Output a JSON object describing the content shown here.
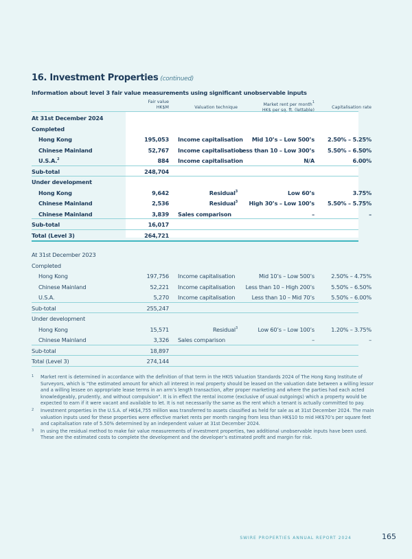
{
  "section": {
    "title": "16. Investment Properties",
    "title_suffix": "(continued)",
    "subtitle": "Information about level 3 fair value measurements using significant unobservable inputs"
  },
  "headers": {
    "fair_value_1": "Fair value",
    "fair_value_2": "HK$M",
    "technique": "Valuation technique",
    "rent_1": "Market rent per month",
    "rent_1_sup": "1",
    "rent_2": "HK$ per sq. ft. (lettable)",
    "cap": "Capitalisation rate"
  },
  "rows_2024": [
    {
      "label": "At 31st December 2024",
      "type": "heading"
    },
    {
      "label": "Completed",
      "type": "heading"
    },
    {
      "label": "Hong Kong",
      "fv": "195,053",
      "tech": "Income capitalisation",
      "rent": "Mid 10’s – Low 500’s",
      "cap": "2.50% – 5.25%",
      "indent": true
    },
    {
      "label": "Chinese Mainland",
      "fv": "52,767",
      "tech": "Income capitalisation",
      "rent": "Less than 10 – Low 300’s",
      "cap": "5.50% – 6.50%",
      "indent": true
    },
    {
      "label": "U.S.A.",
      "sup": "2",
      "fv": "884",
      "tech": "Income capitalisation",
      "rent": "N/A",
      "cap": "6.00%",
      "indent": true
    },
    {
      "label": "Sub-total",
      "fv": "248,704",
      "line_before": true
    },
    {
      "label": "Under development",
      "type": "heading",
      "line_before": true
    },
    {
      "label": "Hong Kong",
      "fv": "9,642",
      "tech": "Residual",
      "tech_sup": "3",
      "rent": "Low 60’s",
      "cap": "3.75%",
      "indent": true
    },
    {
      "label": "Chinese Mainland",
      "fv": "2,536",
      "tech": "Residual",
      "tech_sup": "3",
      "rent": "High 30’s – Low 100’s",
      "cap": "5.50% – 5.75%",
      "indent": true
    },
    {
      "label": "Chinese Mainland",
      "fv": "3,839",
      "tech": "Sales comparison",
      "rent": "–",
      "cap": "–",
      "indent": true
    },
    {
      "label": "Sub-total",
      "fv": "16,017",
      "line_before": true
    },
    {
      "label": "Total (Level 3)",
      "fv": "264,721",
      "line_before": true,
      "thick_after": true
    }
  ],
  "rows_2023": [
    {
      "label": "At 31st December 2023",
      "type": "heading"
    },
    {
      "label": "Completed",
      "type": "heading"
    },
    {
      "label": "Hong Kong",
      "fv": "197,756",
      "tech": "Income capitalisation",
      "rent": "Mid 10’s – Low 500’s",
      "cap": "2.50% – 4.75%",
      "indent": true
    },
    {
      "label": "Chinese Mainland",
      "fv": "52,221",
      "tech": "Income capitalisation",
      "rent": "Less than 10 – High 200’s",
      "cap": "5.50% – 6.50%",
      "indent": true
    },
    {
      "label": "U.S.A.",
      "fv": "5,270",
      "tech": "Income capitalisation",
      "rent": "Less than 10 – Mid 70’s",
      "cap": "5.50% – 6.00%",
      "indent": true
    },
    {
      "label": "Sub-total",
      "fv": "255,247",
      "line_before": true
    },
    {
      "label": "Under development",
      "type": "heading",
      "line_before": true
    },
    {
      "label": "Hong Kong",
      "fv": "15,571",
      "tech": "Residual",
      "tech_sup": "3",
      "rent": "Low 60’s – Low 100’s",
      "cap": "1.20% – 3.75%",
      "indent": true
    },
    {
      "label": "Chinese Mainland",
      "fv": "3,326",
      "tech": "Sales comparison",
      "rent": "–",
      "cap": "–",
      "indent": true
    },
    {
      "label": "Sub-total",
      "fv": "18,897",
      "line_before": true
    },
    {
      "label": "Total (Level 3)",
      "fv": "274,144",
      "line_before": true,
      "line_after": true
    }
  ],
  "notes": [
    {
      "n": "1",
      "text": "Market rent is determined in accordance with the definition of that term in the HKIS Valuation Standards 2024 of The Hong Kong Institute of Surveyors, which is “the estimated amount for which all interest in real property should be leased on the valuation date between a willing lessor and a willing lessee on appropriate lease terms in an arm’s length transaction, after proper marketing and where the parties had each acted knowledgeably, prudently, and without compulsion”. It is in effect the rental income (exclusive of usual outgoings) which a property would be expected to earn if it were vacant and available to let. It is not necessarily the same as the rent which a tenant is actually committed to pay."
    },
    {
      "n": "2",
      "text": "Investment properties in the U.S.A. of HK$4,755 million was transferred to assets classified as held for sale as at 31st December 2024. The main valuation inputs used for these properties were effective market rents per month ranging from less than HK$10 to mid HK$70’s per square feet and capitalisation rate of 5.50% determined by an independent valuer at 31st December 2024."
    },
    {
      "n": "3",
      "text": "In using the residual method to make fair value measurements of investment properties, two additional unobservable inputs have been used. These are the estimated costs to complete the development and the developer’s estimated profit and margin for risk."
    }
  ],
  "footer": {
    "report": "SWIRE PROPERTIES ANNUAL REPORT 2024",
    "page": "165"
  },
  "colors": {
    "background": "#e9f5f6",
    "text": "#1d3b5a",
    "accent_line": "#3fb6c0"
  }
}
